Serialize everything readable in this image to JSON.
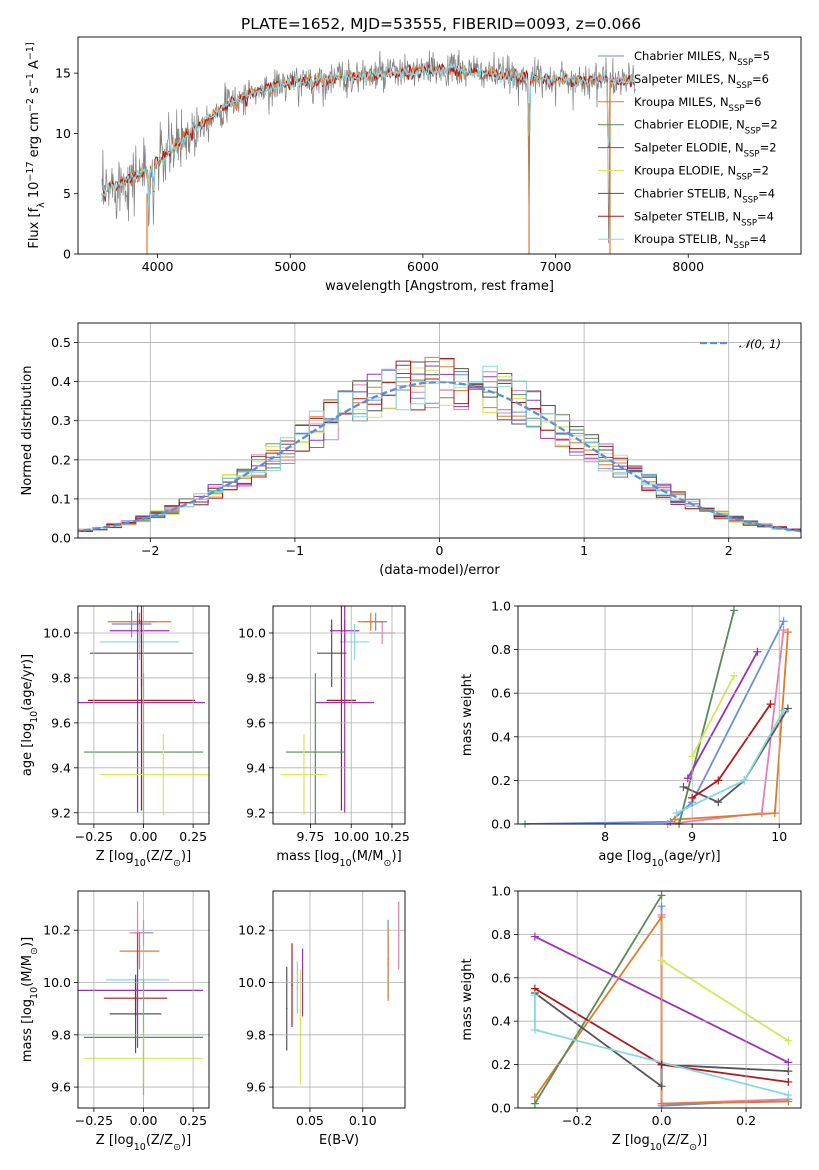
{
  "page_title": "PLATE=1652, MJD=53555, FIBERID=0093, z=0.066",
  "colors": {
    "series": [
      "#6a8fd6",
      "#e87fb0",
      "#e07b2a",
      "#5a8a5a",
      "#9b30b8",
      "#d4e85a",
      "#555555",
      "#b01818",
      "#87d8e0"
    ],
    "grid": "#b0b0b0",
    "data": "#808080",
    "normal_curve": "#5a8fd6"
  },
  "legend": {
    "entries": [
      "Chabrier MILES, N_SSP=5",
      "Salpeter MILES, N_SSP=6",
      "Kroupa MILES, N_SSP=6",
      "Chabrier ELODIE, N_SSP=2",
      "Salpeter ELODIE, N_SSP=2",
      "Kroupa ELODIE, N_SSP=2",
      "Chabrier STELIB, N_SSP=4",
      "Salpeter STELIB, N_SSP=4",
      "Kroupa STELIB, N_SSP=4"
    ],
    "normal_label": "𝒩(0, 1)"
  },
  "chart_data": [
    {
      "type": "line",
      "name": "spectrum",
      "xlabel": "wavelength [Angstrom, rest frame]",
      "ylabel": "Flux [f_λ 10^-17 erg cm^-2 s^-1 A^-1]",
      "xlim": [
        3400,
        8850
      ],
      "ylim": [
        0,
        18
      ],
      "xticks": [
        4000,
        5000,
        6000,
        7000,
        8000
      ],
      "yticks": [
        0,
        5,
        10,
        15
      ],
      "continuum_knots": [
        [
          3580,
          4.8
        ],
        [
          3650,
          5.6
        ],
        [
          3800,
          6.3
        ],
        [
          3950,
          7.2
        ],
        [
          4100,
          8.6
        ],
        [
          4300,
          10.6
        ],
        [
          4500,
          12.2
        ],
        [
          4700,
          13.3
        ],
        [
          4900,
          14.0
        ],
        [
          5100,
          14.3
        ],
        [
          5300,
          14.5
        ],
        [
          5600,
          14.8
        ],
        [
          5900,
          15.1
        ],
        [
          6200,
          15.3
        ],
        [
          6500,
          15.0
        ],
        [
          6800,
          14.6
        ],
        [
          7100,
          14.4
        ],
        [
          7400,
          14.5
        ],
        [
          7600,
          14.3
        ]
      ],
      "absorption_features": [
        [
          3934,
          5.5
        ],
        [
          3969,
          4.5
        ],
        [
          4861,
          0.8
        ],
        [
          5175,
          0.9
        ],
        [
          6563,
          0.6
        ],
        [
          6800,
          12.0
        ],
        [
          7400,
          14.0
        ]
      ],
      "grid": false
    },
    {
      "type": "bar",
      "name": "residual-histogram",
      "xlabel": "(data-model)/error",
      "ylabel": "Normed distribution",
      "xlim": [
        -2.5,
        2.5
      ],
      "ylim": [
        0,
        0.55
      ],
      "xticks": [
        -2,
        -1,
        0,
        1,
        2
      ],
      "yticks": [
        0.0,
        0.1,
        0.2,
        0.3,
        0.4,
        0.5
      ],
      "bin_width": 0.1,
      "normal_curve": {
        "mean": 0,
        "sigma": 1
      },
      "grid": true
    },
    {
      "type": "scatter",
      "name": "age-vs-metallicity",
      "xlabel": "Z [log10(Z/Z⊙)]",
      "ylabel": "age [log10(age/yr)]",
      "xlim": [
        -0.33,
        0.33
      ],
      "ylim": [
        9.15,
        10.12
      ],
      "xticks": [
        -0.25,
        0.0,
        0.25
      ],
      "yticks": [
        9.2,
        9.4,
        9.6,
        9.8,
        10.0
      ],
      "points": [
        {
          "x": -0.06,
          "y": 10.04,
          "xerr": 0.1,
          "yerr": 0.06,
          "c": 0
        },
        {
          "x": -0.03,
          "y": 10.05,
          "xerr": 0.09,
          "yerr": 0.04,
          "c": 1
        },
        {
          "x": -0.02,
          "y": 10.05,
          "xerr": 0.16,
          "yerr": 0.04,
          "c": 2
        },
        {
          "x": -0.02,
          "y": 10.01,
          "xerr": 0.15,
          "yerr": 0.05,
          "c": 4
        },
        {
          "x": -0.02,
          "y": 9.96,
          "xerr": 0.2,
          "yerr": 0.08,
          "c": 8
        },
        {
          "x": -0.01,
          "y": 9.91,
          "xerr": 0.26,
          "yerr": 0.15,
          "c": 6
        },
        {
          "x": -0.01,
          "y": 9.7,
          "xerr": 0.27,
          "yerr": 0.49,
          "c": 7
        },
        {
          "x": -0.03,
          "y": 9.69,
          "xerr": 0.34,
          "yerr": 0.49,
          "c": 4
        },
        {
          "x": 0.0,
          "y": 9.47,
          "xerr": 0.3,
          "yerr": 0.35,
          "c": 3
        },
        {
          "x": 0.1,
          "y": 9.37,
          "xerr": 0.32,
          "yerr": 0.18,
          "c": 5
        }
      ],
      "grid": true
    },
    {
      "type": "scatter",
      "name": "age-vs-mass",
      "xlabel": "mass [log10(M/M⊙)]",
      "ylabel": "",
      "xlim": [
        9.52,
        10.33
      ],
      "ylim": [
        9.15,
        10.12
      ],
      "xticks": [
        9.75,
        10.0,
        10.25
      ],
      "yticks": [
        9.2,
        9.4,
        9.6,
        9.8,
        10.0
      ],
      "points": [
        {
          "x": 10.15,
          "y": 10.05,
          "xerr": 0.07,
          "yerr": 0.04,
          "c": 0
        },
        {
          "x": 10.19,
          "y": 10.0,
          "xerr": 0.08,
          "yerr": 0.05,
          "c": 1
        },
        {
          "x": 10.12,
          "y": 10.05,
          "xerr": 0.08,
          "yerr": 0.04,
          "c": 2
        },
        {
          "x": 9.96,
          "y": 10.01,
          "xerr": 0.09,
          "yerr": 0.05,
          "c": 4
        },
        {
          "x": 10.02,
          "y": 9.96,
          "xerr": 0.09,
          "yerr": 0.08,
          "c": 8
        },
        {
          "x": 9.88,
          "y": 9.91,
          "xerr": 0.09,
          "yerr": 0.15,
          "c": 6
        },
        {
          "x": 9.94,
          "y": 9.7,
          "xerr": 0.09,
          "yerr": 0.49,
          "c": 7
        },
        {
          "x": 9.96,
          "y": 9.69,
          "xerr": 0.18,
          "yerr": 0.49,
          "c": 4
        },
        {
          "x": 9.78,
          "y": 9.47,
          "xerr": 0.18,
          "yerr": 0.35,
          "c": 3
        },
        {
          "x": 9.71,
          "y": 9.37,
          "xerr": 0.14,
          "yerr": 0.18,
          "c": 5
        }
      ],
      "grid": true
    },
    {
      "type": "line",
      "name": "mass-weight-vs-age",
      "xlabel": "age [log10(age/yr)]",
      "ylabel": "mass weight",
      "xlim": [
        7.0,
        10.25
      ],
      "ylim": [
        0,
        1
      ],
      "xticks": [
        8,
        9,
        10
      ],
      "yticks": [
        0.0,
        0.2,
        0.4,
        0.6,
        0.8,
        1.0
      ],
      "series": [
        {
          "c": 0,
          "points": [
            [
              7.08,
              0.0
            ],
            [
              8.75,
              0.01
            ],
            [
              9.0,
              0.1
            ],
            [
              10.05,
              0.93
            ]
          ]
        },
        {
          "c": 1,
          "points": [
            [
              8.72,
              0.0
            ],
            [
              9.8,
              0.05
            ],
            [
              10.05,
              0.89
            ]
          ]
        },
        {
          "c": 2,
          "points": [
            [
              8.8,
              0.02
            ],
            [
              9.95,
              0.05
            ],
            [
              10.1,
              0.88
            ]
          ]
        },
        {
          "c": 3,
          "points": [
            [
              8.85,
              0.0
            ],
            [
              9.48,
              0.98
            ]
          ]
        },
        {
          "c": 4,
          "points": [
            [
              8.95,
              0.21
            ],
            [
              9.75,
              0.79
            ]
          ]
        },
        {
          "c": 5,
          "points": [
            [
              9.0,
              0.31
            ],
            [
              9.48,
              0.68
            ]
          ]
        },
        {
          "c": 6,
          "points": [
            [
              8.9,
              0.17
            ],
            [
              9.3,
              0.1
            ],
            [
              9.6,
              0.2
            ],
            [
              10.1,
              0.53
            ]
          ]
        },
        {
          "c": 7,
          "points": [
            [
              9.0,
              0.12
            ],
            [
              9.3,
              0.2
            ],
            [
              9.9,
              0.55
            ]
          ]
        },
        {
          "c": 8,
          "points": [
            [
              8.82,
              0.05
            ],
            [
              9.6,
              0.2
            ],
            [
              10.05,
              0.52
            ]
          ]
        }
      ],
      "grid": true
    },
    {
      "type": "scatter",
      "name": "mass-vs-metallicity",
      "xlabel": "Z [log10(Z/Z⊙)]",
      "ylabel": "mass [log10(M/M⊙)]",
      "xlim": [
        -0.33,
        0.33
      ],
      "ylim": [
        9.52,
        10.35
      ],
      "xticks": [
        -0.25,
        0.0,
        0.25
      ],
      "yticks": [
        9.6,
        9.8,
        10.0,
        10.2
      ],
      "points": [
        {
          "x": 0.0,
          "y": 10.19,
          "xerr": 0.05,
          "yerr": 0.05,
          "c": 0
        },
        {
          "x": -0.03,
          "y": 10.19,
          "xerr": 0.04,
          "yerr": 0.12,
          "c": 1
        },
        {
          "x": -0.02,
          "y": 10.12,
          "xerr": 0.1,
          "yerr": 0.07,
          "c": 2
        },
        {
          "x": -0.03,
          "y": 10.01,
          "xerr": 0.16,
          "yerr": 0.1,
          "c": 8
        },
        {
          "x": -0.04,
          "y": 9.88,
          "xerr": 0.13,
          "yerr": 0.15,
          "c": 6
        },
        {
          "x": -0.04,
          "y": 9.94,
          "xerr": 0.16,
          "yerr": 0.07,
          "c": 7
        },
        {
          "x": -0.03,
          "y": 9.97,
          "xerr": 0.33,
          "yerr": 0.22,
          "c": 4
        },
        {
          "x": 0.0,
          "y": 9.79,
          "xerr": 0.3,
          "yerr": 0.22,
          "c": 3
        },
        {
          "x": 0.0,
          "y": 9.71,
          "xerr": 0.3,
          "yerr": 0.1,
          "c": 5
        }
      ],
      "grid": true
    },
    {
      "type": "scatter",
      "name": "mass-vs-extinction",
      "xlabel": "E(B-V)",
      "ylabel": "",
      "xlim": [
        0.015,
        0.14
      ],
      "ylim": [
        9.52,
        10.35
      ],
      "xticks": [
        0.05,
        0.1
      ],
      "yticks": [
        9.6,
        9.8,
        10.0,
        10.2
      ],
      "points": [
        {
          "x": 0.028,
          "y": 9.9,
          "yerr": 0.16,
          "c": 6
        },
        {
          "x": 0.033,
          "y": 9.99,
          "yerr": 0.16,
          "c": 7
        },
        {
          "x": 0.038,
          "y": 9.98,
          "yerr": 0.1,
          "c": 8
        },
        {
          "x": 0.041,
          "y": 9.83,
          "yerr": 0.22,
          "c": 5
        },
        {
          "x": 0.043,
          "y": 10.0,
          "yerr": 0.13,
          "c": 4
        },
        {
          "x": 0.124,
          "y": 10.09,
          "yerr": 0.15,
          "c": 0
        },
        {
          "x": 0.124,
          "y": 10.07,
          "yerr": 0.14,
          "c": 2
        },
        {
          "x": 0.134,
          "y": 10.18,
          "yerr": 0.13,
          "c": 1
        }
      ],
      "grid": true
    },
    {
      "type": "line",
      "name": "mass-weight-vs-metallicity",
      "xlabel": "Z [log10(Z/Z⊙)]",
      "ylabel": "mass weight",
      "xlim": [
        -0.34,
        0.33
      ],
      "ylim": [
        0,
        1
      ],
      "xticks": [
        -0.2,
        0.0,
        0.2
      ],
      "yticks": [
        0.0,
        0.2,
        0.4,
        0.6,
        0.8,
        1.0
      ],
      "series": [
        {
          "c": 0,
          "points": [
            [
              0.0,
              0.93
            ],
            [
              0.0,
              0.01
            ],
            [
              0.3,
              0.04
            ]
          ]
        },
        {
          "c": 1,
          "points": [
            [
              0.0,
              0.89
            ],
            [
              0.0,
              0.02
            ],
            [
              0.3,
              0.04
            ]
          ]
        },
        {
          "c": 2,
          "points": [
            [
              -0.3,
              0.05
            ],
            [
              0.0,
              0.88
            ],
            [
              0.0,
              0.02
            ],
            [
              0.3,
              0.03
            ]
          ]
        },
        {
          "c": 3,
          "points": [
            [
              -0.3,
              0.02
            ],
            [
              0.0,
              0.98
            ]
          ]
        },
        {
          "c": 4,
          "points": [
            [
              -0.3,
              0.79
            ],
            [
              0.3,
              0.21
            ]
          ]
        },
        {
          "c": 5,
          "points": [
            [
              0.0,
              0.68
            ],
            [
              0.3,
              0.31
            ]
          ]
        },
        {
          "c": 6,
          "points": [
            [
              -0.3,
              0.53
            ],
            [
              0.0,
              0.1
            ],
            [
              0.0,
              0.2
            ],
            [
              0.3,
              0.17
            ]
          ]
        },
        {
          "c": 7,
          "points": [
            [
              -0.3,
              0.55
            ],
            [
              0.0,
              0.2
            ],
            [
              0.3,
              0.12
            ]
          ]
        },
        {
          "c": 8,
          "points": [
            [
              -0.3,
              0.52
            ],
            [
              -0.3,
              0.36
            ],
            [
              0.3,
              0.06
            ]
          ]
        }
      ],
      "grid": true
    }
  ]
}
